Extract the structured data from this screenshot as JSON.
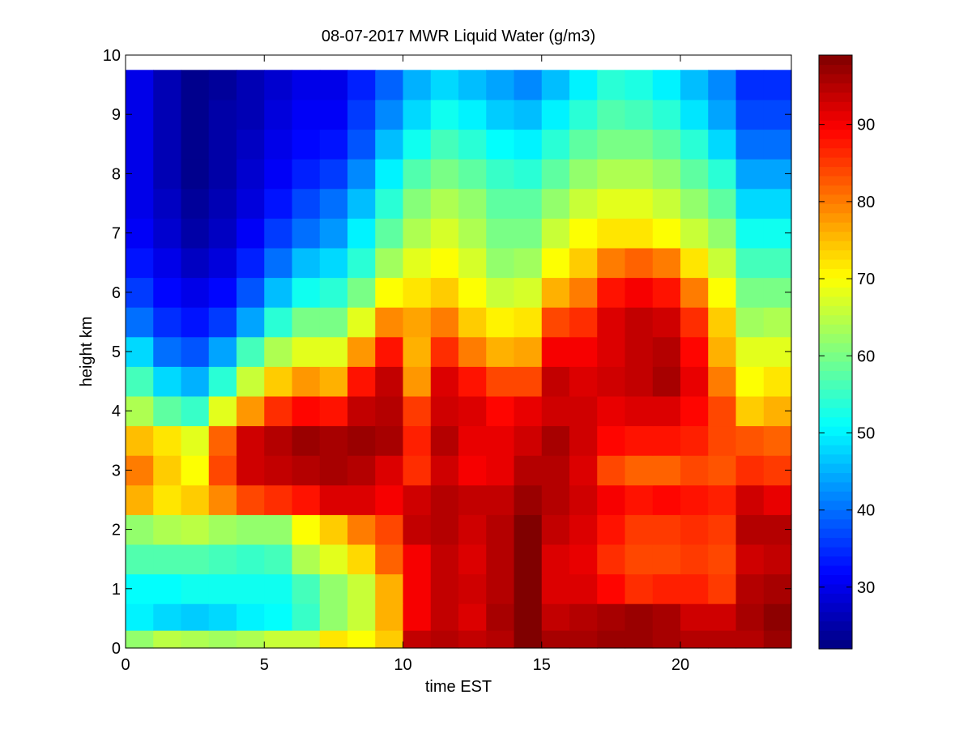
{
  "chart_data": {
    "type": "heatmap",
    "title": "08-07-2017 MWR Liquid Water (g/m3)",
    "xlabel": "time EST",
    "ylabel": "height km",
    "xlim": [
      0,
      24
    ],
    "ylim": [
      0,
      10
    ],
    "x_ticks": [
      0,
      5,
      10,
      15,
      20
    ],
    "y_ticks": [
      0,
      1,
      2,
      3,
      4,
      5,
      6,
      7,
      8,
      9,
      10
    ],
    "colorbar": {
      "colormap": "jet",
      "range": [
        22,
        99
      ],
      "ticks": [
        30,
        40,
        50,
        60,
        70,
        80,
        90
      ]
    },
    "grid": false,
    "x": [
      0.5,
      1.5,
      2.5,
      3.5,
      4.5,
      5.5,
      6.5,
      7.5,
      8.5,
      9.5,
      10.5,
      11.5,
      12.5,
      13.5,
      14.5,
      15.5,
      16.5,
      17.5,
      18.5,
      19.5,
      20.5,
      21.5,
      22.5,
      23.5
    ],
    "y": [
      0.1,
      0.5,
      1,
      1.5,
      2,
      2.5,
      3,
      3.5,
      4,
      4.5,
      5,
      5.5,
      6,
      6.5,
      7,
      7.5,
      8,
      8.5,
      9,
      9.5
    ],
    "note": "values[i][j]: i = height row (bottom to top, matching y), j = hour column (matching x)",
    "values": [
      [
        62,
        65,
        64,
        63,
        64,
        66,
        66,
        72,
        70,
        74,
        94,
        95,
        94,
        95,
        99,
        96,
        96,
        97,
        97,
        96,
        95,
        95,
        95,
        97
      ],
      [
        50,
        48,
        47,
        48,
        50,
        51,
        55,
        62,
        66,
        76,
        90,
        94,
        92,
        96,
        99,
        94,
        95,
        96,
        97,
        96,
        93,
        93,
        96,
        98
      ],
      [
        51,
        51,
        52,
        52,
        52,
        52,
        56,
        62,
        66,
        76,
        90,
        94,
        93,
        95,
        99,
        92,
        92,
        89,
        86,
        87,
        87,
        85,
        95,
        96
      ],
      [
        57,
        57,
        57,
        56,
        55,
        56,
        64,
        68,
        73,
        82,
        90,
        94,
        92,
        95,
        99,
        92,
        91,
        86,
        84,
        84,
        85,
        84,
        93,
        94
      ],
      [
        62,
        64,
        65,
        63,
        62,
        62,
        70,
        74,
        80,
        84,
        94,
        95,
        93,
        95,
        99,
        94,
        92,
        88,
        85,
        85,
        86,
        85,
        95,
        95
      ],
      [
        76,
        72,
        74,
        79,
        84,
        86,
        88,
        92,
        92,
        90,
        93,
        95,
        94,
        94,
        97,
        95,
        93,
        90,
        88,
        89,
        88,
        87,
        93,
        91
      ],
      [
        80,
        74,
        70,
        84,
        93,
        94,
        95,
        96,
        95,
        92,
        86,
        93,
        90,
        91,
        95,
        95,
        92,
        84,
        82,
        82,
        84,
        83,
        86,
        85
      ],
      [
        75,
        72,
        68,
        82,
        93,
        95,
        97,
        96,
        97,
        96,
        87,
        95,
        91,
        91,
        93,
        96,
        93,
        89,
        88,
        88,
        87,
        84,
        83,
        82
      ],
      [
        64,
        58,
        55,
        68,
        78,
        86,
        89,
        88,
        94,
        95,
        85,
        93,
        92,
        89,
        91,
        93,
        93,
        91,
        92,
        92,
        89,
        84,
        74,
        76
      ],
      [
        56,
        48,
        45,
        54,
        66,
        74,
        78,
        76,
        88,
        94,
        78,
        92,
        88,
        84,
        84,
        94,
        92,
        93,
        94,
        96,
        91,
        80,
        70,
        72
      ],
      [
        48,
        40,
        38,
        44,
        56,
        64,
        68,
        68,
        78,
        88,
        76,
        86,
        80,
        76,
        77,
        90,
        90,
        92,
        94,
        95,
        89,
        76,
        68,
        68
      ],
      [
        40,
        35,
        33,
        36,
        44,
        54,
        60,
        60,
        68,
        79,
        77,
        80,
        74,
        71,
        72,
        84,
        86,
        92,
        94,
        93,
        86,
        74,
        63,
        64
      ],
      [
        36,
        32,
        30,
        32,
        38,
        46,
        52,
        54,
        60,
        70,
        72,
        74,
        70,
        66,
        67,
        76,
        80,
        88,
        90,
        88,
        80,
        70,
        60,
        60
      ],
      [
        33,
        30,
        27,
        29,
        34,
        40,
        46,
        48,
        54,
        63,
        68,
        70,
        67,
        62,
        63,
        70,
        74,
        80,
        82,
        80,
        72,
        66,
        56,
        56
      ],
      [
        31,
        28,
        25,
        27,
        31,
        36,
        40,
        43,
        50,
        58,
        64,
        67,
        64,
        60,
        60,
        66,
        70,
        72,
        72,
        70,
        66,
        62,
        52,
        52
      ],
      [
        30,
        27,
        24,
        26,
        29,
        33,
        37,
        40,
        46,
        54,
        61,
        64,
        62,
        58,
        58,
        62,
        66,
        68,
        68,
        66,
        62,
        58,
        48,
        48
      ],
      [
        30,
        26,
        23,
        25,
        28,
        31,
        34,
        36,
        42,
        50,
        57,
        60,
        58,
        55,
        54,
        58,
        62,
        64,
        64,
        62,
        58,
        54,
        44,
        44
      ],
      [
        30,
        26,
        23,
        25,
        27,
        30,
        32,
        33,
        38,
        46,
        52,
        56,
        54,
        51,
        50,
        54,
        58,
        60,
        60,
        58,
        54,
        48,
        40,
        40
      ],
      [
        30,
        26,
        23,
        25,
        26,
        29,
        31,
        31,
        36,
        42,
        48,
        52,
        50,
        47,
        46,
        50,
        54,
        57,
        56,
        54,
        49,
        44,
        37,
        37
      ],
      [
        30,
        26,
        23,
        24,
        26,
        28,
        30,
        30,
        34,
        39,
        45,
        48,
        46,
        44,
        42,
        46,
        50,
        54,
        53,
        50,
        46,
        42,
        35,
        35
      ]
    ]
  }
}
